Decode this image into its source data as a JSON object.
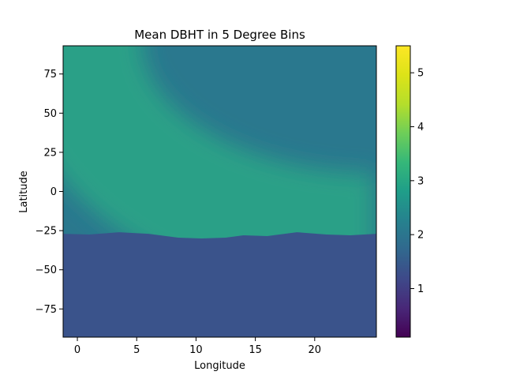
{
  "chart_data": {
    "type": "heatmap",
    "title": "Mean DBHT in 5 Degree Bins",
    "xlabel": "Longitude",
    "ylabel": "Latitude",
    "xlim": [
      -1.2,
      25.2
    ],
    "ylim": [
      -93,
      93
    ],
    "xticks": [
      0,
      5,
      10,
      15,
      20
    ],
    "yticks": [
      -75,
      -50,
      -25,
      0,
      25,
      50,
      75
    ],
    "colorbar": {
      "colormap": "viridis",
      "range": [
        0.1,
        5.5
      ],
      "ticks": [
        1,
        2,
        3,
        4,
        5
      ]
    },
    "regions": [
      {
        "name": "southern region (below boundary)",
        "value": 1.85
      },
      {
        "name": "background northern region",
        "value": 2.35
      },
      {
        "name": "high band (arc-shaped)",
        "value": 3.2
      }
    ],
    "boundary_lat": [
      {
        "lon": -1.2,
        "lat": -27
      },
      {
        "lon": 1,
        "lat": -27.5
      },
      {
        "lon": 3.5,
        "lat": -26
      },
      {
        "lon": 6,
        "lat": -27
      },
      {
        "lon": 8.5,
        "lat": -29.5
      },
      {
        "lon": 10.5,
        "lat": -30
      },
      {
        "lon": 12.5,
        "lat": -29.5
      },
      {
        "lon": 14,
        "lat": -28
      },
      {
        "lon": 16,
        "lat": -28.5
      },
      {
        "lon": 18.5,
        "lat": -26
      },
      {
        "lon": 21,
        "lat": -27.5
      },
      {
        "lon": 23,
        "lat": -28
      },
      {
        "lon": 25.2,
        "lat": -27
      }
    ],
    "band_arc": {
      "center_lon": 25,
      "center_lat": 93,
      "radius_lon": 25,
      "radius_lat": 123,
      "width_lon": 11
    }
  }
}
